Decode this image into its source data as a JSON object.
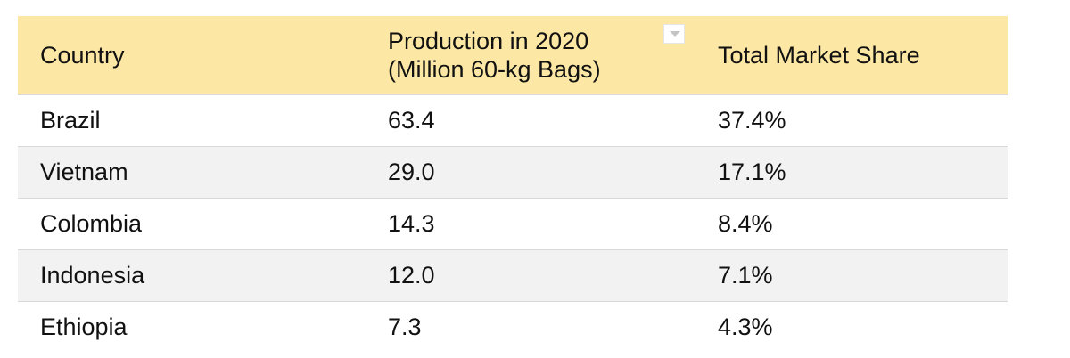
{
  "table": {
    "headers": {
      "country": "Country",
      "production_line1": "Production in 2020",
      "production_line2": "(Million 60-kg Bags)",
      "share": "Total Market Share"
    },
    "rows": [
      {
        "country": "Brazil",
        "production": "63.4",
        "share": "37.4%"
      },
      {
        "country": "Vietnam",
        "production": "29.0",
        "share": "17.1%"
      },
      {
        "country": "Colombia",
        "production": "14.3",
        "share": "8.4%"
      },
      {
        "country": "Indonesia",
        "production": "12.0",
        "share": "7.1%"
      },
      {
        "country": "Ethiopia",
        "production": "7.3",
        "share": "4.3%"
      }
    ],
    "filter_icon": "chevron-down-icon",
    "colors": {
      "header_bg": "#fce8a4",
      "stripe_bg": "#f2f2f2",
      "row_border": "#d9d9d9"
    }
  }
}
